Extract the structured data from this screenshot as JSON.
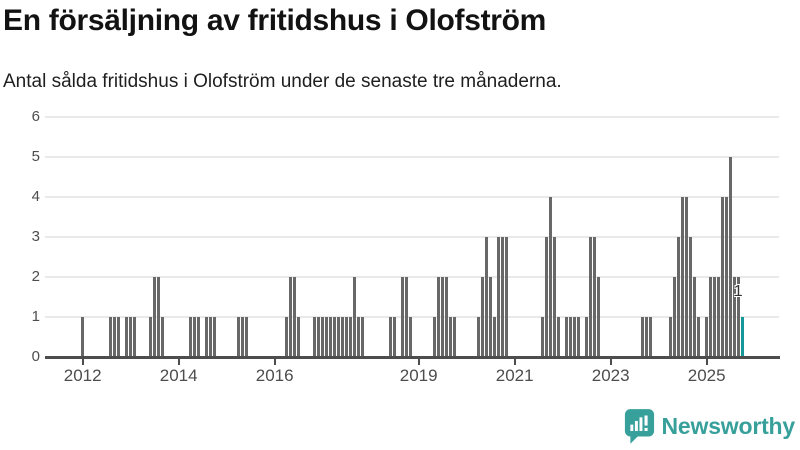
{
  "header": {
    "title": "En försäljning av fritidshus i Olofström",
    "subtitle": "Antal sålda fritidshus i Olofström under de senaste tre månaderna."
  },
  "footer": {
    "brand": "Newsworthy",
    "brand_color": "#38a09b"
  },
  "chart_data": {
    "type": "bar",
    "title": "En försäljning av fritidshus i Olofström",
    "subtitle": "Antal sålda fritidshus i Olofström under de senaste tre månaderna.",
    "ylabel": "",
    "xlabel": "",
    "ylim": [
      0,
      6
    ],
    "y_ticks": [
      0,
      1,
      2,
      3,
      4,
      5,
      6
    ],
    "x_ticks": [
      2012,
      2014,
      2016,
      2019,
      2021,
      2023,
      2025
    ],
    "grid": "horizontal",
    "legend": "none",
    "bar_color": "#686868",
    "accent_color": "#16989a",
    "bars": [
      [
        "2012-01",
        1
      ],
      [
        "2012-08",
        1
      ],
      [
        "2012-09",
        1
      ],
      [
        "2012-10",
        1
      ],
      [
        "2012-12",
        1
      ],
      [
        "2013-01",
        1
      ],
      [
        "2013-02",
        1
      ],
      [
        "2013-06",
        1
      ],
      [
        "2013-07",
        2
      ],
      [
        "2013-08",
        2
      ],
      [
        "2013-09",
        1
      ],
      [
        "2014-04",
        1
      ],
      [
        "2014-05",
        1
      ],
      [
        "2014-06",
        1
      ],
      [
        "2014-08",
        1
      ],
      [
        "2014-09",
        1
      ],
      [
        "2014-10",
        1
      ],
      [
        "2015-04",
        1
      ],
      [
        "2015-05",
        1
      ],
      [
        "2015-06",
        1
      ],
      [
        "2016-04",
        1
      ],
      [
        "2016-05",
        2
      ],
      [
        "2016-06",
        2
      ],
      [
        "2016-07",
        1
      ],
      [
        "2016-11",
        1
      ],
      [
        "2016-12",
        1
      ],
      [
        "2017-01",
        1
      ],
      [
        "2017-02",
        1
      ],
      [
        "2017-03",
        1
      ],
      [
        "2017-04",
        1
      ],
      [
        "2017-05",
        1
      ],
      [
        "2017-06",
        1
      ],
      [
        "2017-07",
        1
      ],
      [
        "2017-08",
        1
      ],
      [
        "2017-09",
        2
      ],
      [
        "2017-10",
        1
      ],
      [
        "2017-11",
        1
      ],
      [
        "2018-06",
        1
      ],
      [
        "2018-07",
        1
      ],
      [
        "2018-09",
        2
      ],
      [
        "2018-10",
        2
      ],
      [
        "2018-11",
        1
      ],
      [
        "2019-05",
        1
      ],
      [
        "2019-06",
        2
      ],
      [
        "2019-07",
        2
      ],
      [
        "2019-08",
        2
      ],
      [
        "2019-09",
        1
      ],
      [
        "2019-10",
        1
      ],
      [
        "2020-04",
        1
      ],
      [
        "2020-05",
        2
      ],
      [
        "2020-06",
        3
      ],
      [
        "2020-07",
        2
      ],
      [
        "2020-08",
        1
      ],
      [
        "2020-09",
        3
      ],
      [
        "2020-10",
        3
      ],
      [
        "2020-11",
        3
      ],
      [
        "2021-08",
        1
      ],
      [
        "2021-09",
        3
      ],
      [
        "2021-10",
        4
      ],
      [
        "2021-11",
        3
      ],
      [
        "2021-12",
        1
      ],
      [
        "2022-02",
        1
      ],
      [
        "2022-03",
        1
      ],
      [
        "2022-04",
        1
      ],
      [
        "2022-05",
        1
      ],
      [
        "2022-07",
        1
      ],
      [
        "2022-08",
        3
      ],
      [
        "2022-09",
        3
      ],
      [
        "2022-10",
        2
      ],
      [
        "2023-09",
        1
      ],
      [
        "2023-10",
        1
      ],
      [
        "2023-11",
        1
      ],
      [
        "2024-04",
        1
      ],
      [
        "2024-05",
        2
      ],
      [
        "2024-06",
        3
      ],
      [
        "2024-07",
        4
      ],
      [
        "2024-08",
        4
      ],
      [
        "2024-09",
        3
      ],
      [
        "2024-10",
        2
      ],
      [
        "2024-11",
        1
      ],
      [
        "2025-01",
        1
      ],
      [
        "2025-02",
        2
      ],
      [
        "2025-03",
        2
      ],
      [
        "2025-04",
        2
      ],
      [
        "2025-05",
        4
      ],
      [
        "2025-06",
        4
      ],
      [
        "2025-07",
        5
      ],
      [
        "2025-08",
        2
      ],
      [
        "2025-09",
        2
      ],
      [
        "2025-10",
        1
      ]
    ],
    "highlight": {
      "month": "2025-10",
      "value": 1,
      "label": "1"
    }
  }
}
